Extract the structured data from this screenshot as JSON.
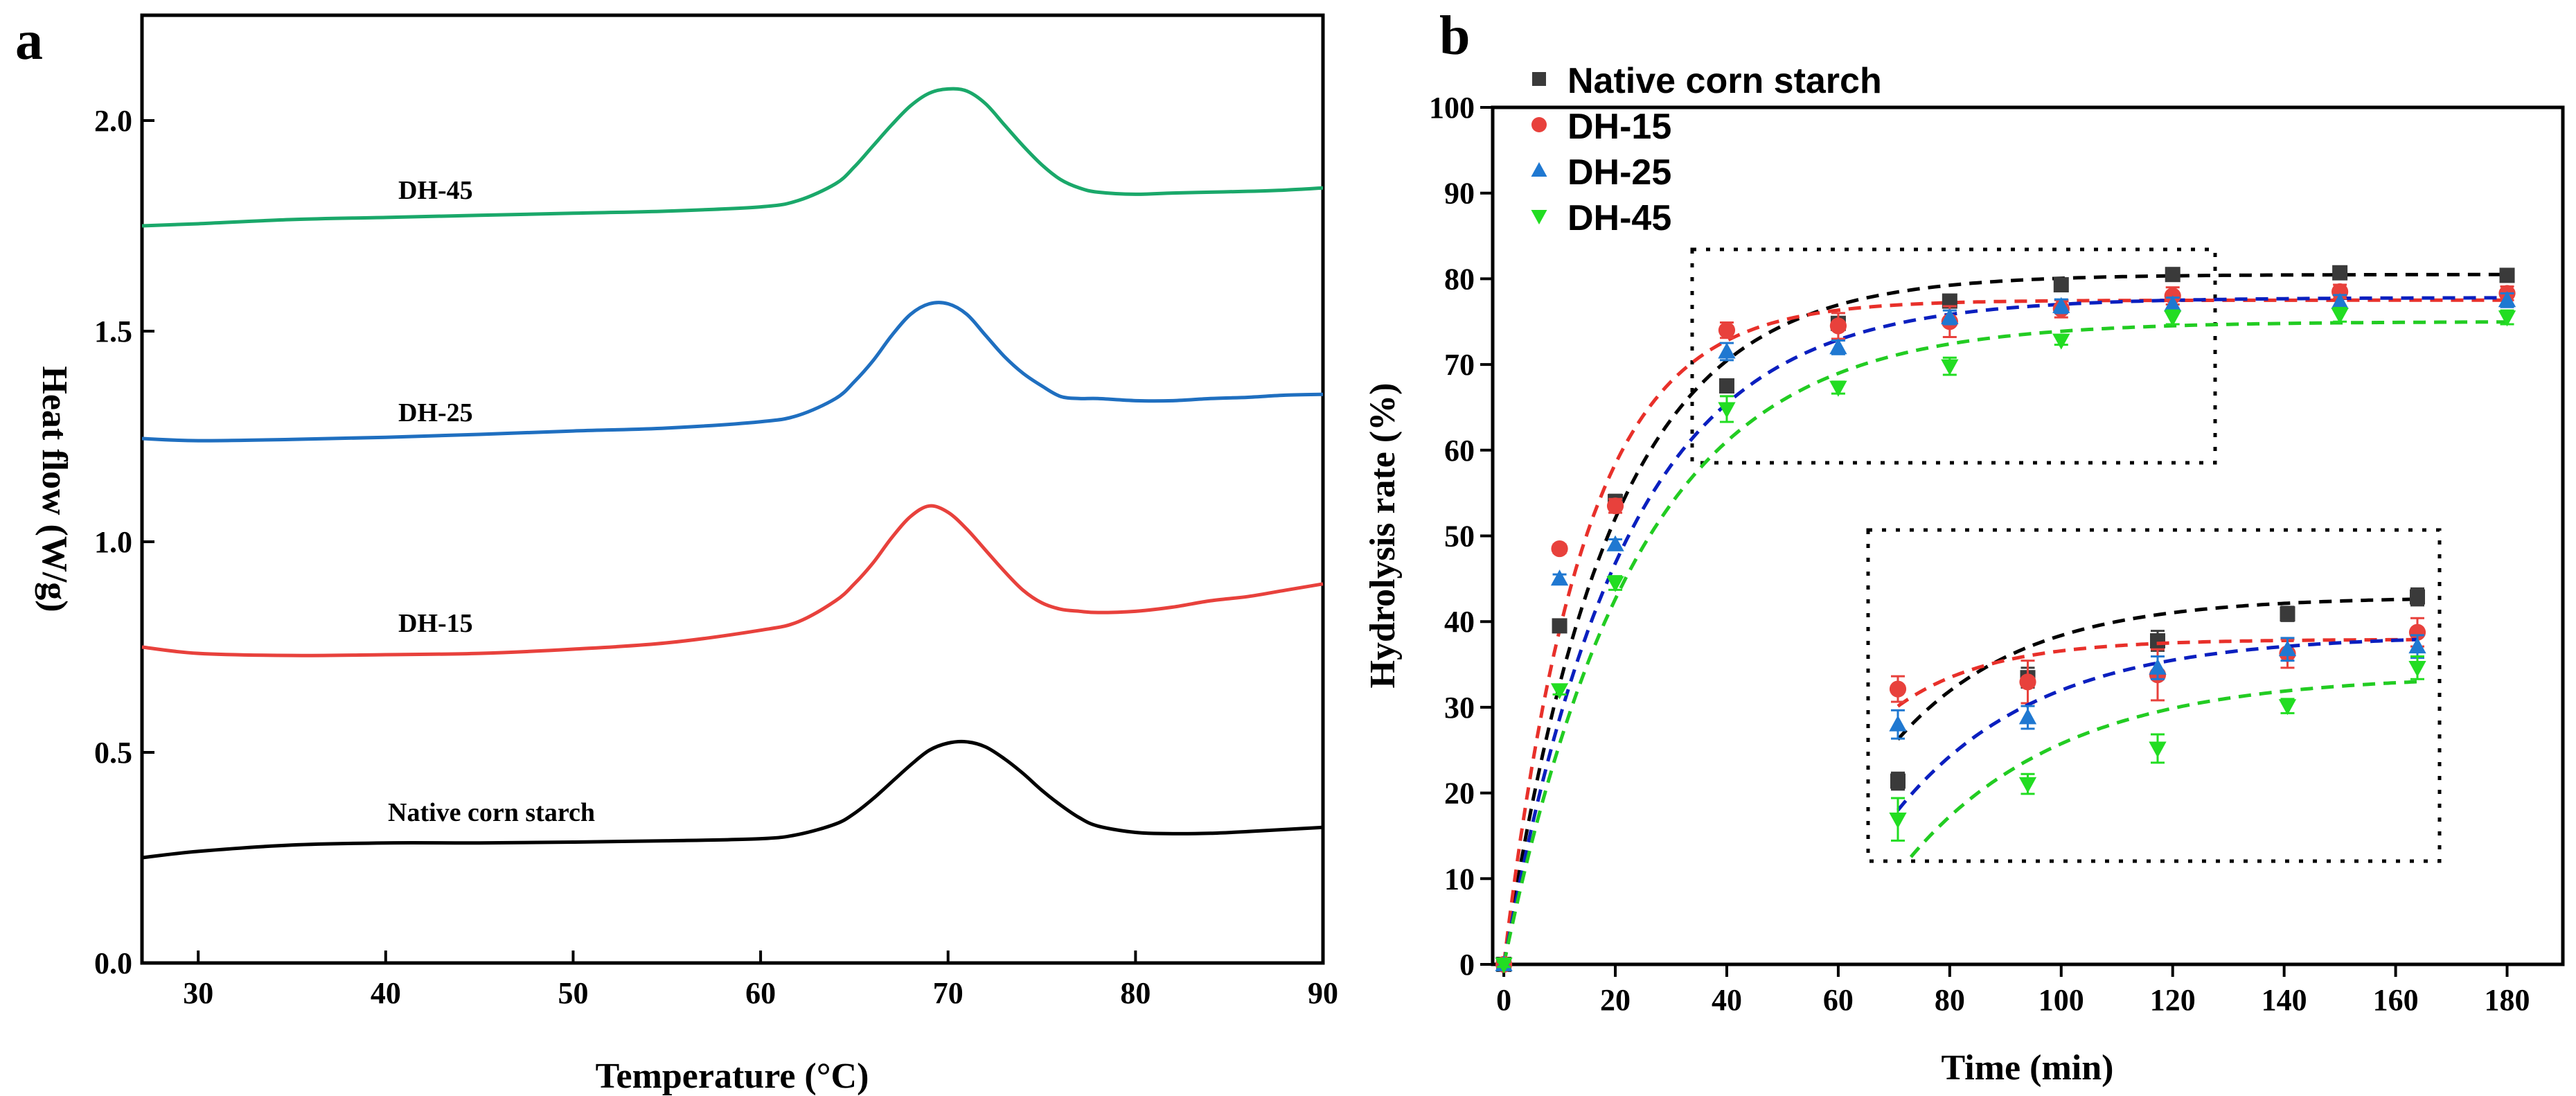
{
  "chart_data": [
    {
      "panel": "a",
      "type": "line",
      "xlabel": "Temperature (°C)",
      "ylabel": "Heat flow (W/g)",
      "xlim": [
        27,
        90
      ],
      "ylim": [
        0.0,
        2.25
      ],
      "xticks": [
        30,
        40,
        50,
        60,
        70,
        80,
        90
      ],
      "yticks": [
        "0.0",
        "0.5",
        "1.0",
        "1.5",
        "2.0"
      ],
      "series": [
        {
          "name": "Native corn starch",
          "color": "#000000",
          "x": [
            27,
            30,
            35,
            40,
            45,
            50,
            55,
            60,
            62,
            64,
            65,
            66,
            67,
            68,
            69,
            70,
            71,
            72,
            73,
            74,
            75,
            76,
            77,
            78,
            80,
            82,
            84,
            86,
            88,
            90
          ],
          "y": [
            0.25,
            0.265,
            0.28,
            0.285,
            0.285,
            0.287,
            0.29,
            0.295,
            0.305,
            0.33,
            0.355,
            0.39,
            0.43,
            0.47,
            0.505,
            0.522,
            0.525,
            0.513,
            0.485,
            0.45,
            0.41,
            0.375,
            0.345,
            0.325,
            0.31,
            0.307,
            0.308,
            0.312,
            0.317,
            0.322
          ]
        },
        {
          "name": "DH-15",
          "color": "#e8413c",
          "x": [
            27,
            30,
            35,
            40,
            45,
            50,
            55,
            60,
            62,
            64,
            65,
            66,
            67,
            68,
            69,
            70,
            71,
            72,
            73,
            74,
            75,
            76,
            77,
            78,
            80,
            82,
            84,
            86,
            88,
            90
          ],
          "y": [
            0.75,
            0.735,
            0.73,
            0.732,
            0.735,
            0.745,
            0.76,
            0.79,
            0.81,
            0.86,
            0.9,
            0.95,
            1.01,
            1.06,
            1.085,
            1.07,
            1.03,
            0.98,
            0.93,
            0.885,
            0.855,
            0.84,
            0.835,
            0.832,
            0.835,
            0.845,
            0.86,
            0.87,
            0.885,
            0.9
          ]
        },
        {
          "name": "DH-25",
          "color": "#1f6fc0",
          "x": [
            27,
            30,
            35,
            40,
            45,
            50,
            55,
            60,
            62,
            64,
            65,
            66,
            67,
            68,
            69,
            70,
            71,
            72,
            73,
            74,
            75,
            76,
            77,
            78,
            80,
            82,
            84,
            86,
            88,
            90
          ],
          "y": [
            1.245,
            1.24,
            1.243,
            1.248,
            1.255,
            1.263,
            1.27,
            1.285,
            1.3,
            1.34,
            1.38,
            1.43,
            1.49,
            1.54,
            1.565,
            1.565,
            1.54,
            1.49,
            1.44,
            1.4,
            1.37,
            1.345,
            1.34,
            1.34,
            1.335,
            1.335,
            1.34,
            1.343,
            1.348,
            1.35
          ]
        },
        {
          "name": "DH-45",
          "color": "#1aa86a",
          "x": [
            27,
            30,
            35,
            40,
            45,
            50,
            55,
            60,
            62,
            64,
            65,
            66,
            67,
            68,
            69,
            70,
            71,
            72,
            73,
            74,
            75,
            76,
            77,
            78,
            80,
            82,
            84,
            86,
            88,
            90
          ],
          "y": [
            1.75,
            1.755,
            1.765,
            1.77,
            1.775,
            1.78,
            1.785,
            1.795,
            1.81,
            1.85,
            1.89,
            1.94,
            1.99,
            2.035,
            2.065,
            2.075,
            2.07,
            2.04,
            1.99,
            1.94,
            1.895,
            1.86,
            1.84,
            1.83,
            1.825,
            1.828,
            1.83,
            1.832,
            1.835,
            1.84
          ]
        }
      ],
      "curve_labels": [
        "DH-45",
        "DH-25",
        "DH-15",
        "Native corn starch"
      ]
    },
    {
      "panel": "b",
      "type": "scatter",
      "xlabel": "Time (min)",
      "ylabel": "Hydrolysis rate (%)",
      "xlim": [
        -2,
        190
      ],
      "ylim": [
        0,
        100
      ],
      "xticks": [
        0,
        20,
        40,
        60,
        80,
        100,
        120,
        140,
        160,
        180
      ],
      "yticks": [
        0,
        10,
        20,
        30,
        40,
        50,
        60,
        70,
        80,
        90,
        100
      ],
      "legend_position": "top-left",
      "series": [
        {
          "name": "Native corn starch",
          "marker": "square",
          "color": "#3a3a3a",
          "fit_color": "#000000",
          "x": [
            0,
            10,
            20,
            40,
            60,
            80,
            100,
            120,
            150,
            180
          ],
          "y": [
            0,
            39.5,
            54,
            67.5,
            74.8,
            77.4,
            79.3,
            80.5,
            80.7,
            80.4
          ],
          "err": [
            0.3,
            0.6,
            0.8,
            0.6,
            0.7,
            0.7,
            0.5,
            0.6,
            0.6,
            0.5
          ],
          "fit_plateau": 80.5,
          "fit_k": 0.052
        },
        {
          "name": "DH-15",
          "marker": "circle",
          "color": "#e8413c",
          "fit_color": "#e8302a",
          "x": [
            0,
            10,
            20,
            40,
            60,
            80,
            100,
            120,
            150,
            180
          ],
          "y": [
            0,
            48.5,
            53.5,
            74,
            74.5,
            75,
            76.5,
            78,
            78.5,
            78.3
          ],
          "err": [
            0.3,
            0.5,
            0.8,
            0.9,
            1.5,
            1.8,
            1.0,
            1.0,
            0.8,
            0.8
          ],
          "fit_plateau": 77.5,
          "fit_k": 0.07
        },
        {
          "name": "DH-25",
          "marker": "triangle-up",
          "color": "#1f78d1",
          "fit_color": "#0a1fbf",
          "x": [
            0,
            10,
            20,
            40,
            60,
            80,
            100,
            120,
            150,
            180
          ],
          "y": [
            0,
            45,
            49,
            71.5,
            72,
            75.5,
            76.8,
            77,
            77.3,
            77.5
          ],
          "err": [
            0.3,
            0.5,
            0.6,
            1.0,
            0.8,
            0.8,
            0.8,
            0.8,
            0.8,
            0.8
          ],
          "fit_plateau": 77.8,
          "fit_k": 0.046
        },
        {
          "name": "DH-45",
          "marker": "triangle-down",
          "color": "#22dd22",
          "fit_color": "#22cc22",
          "x": [
            0,
            10,
            20,
            40,
            60,
            80,
            100,
            120,
            150,
            180
          ],
          "y": [
            0,
            32,
            44.5,
            64.8,
            67.3,
            69.8,
            72.8,
            75.5,
            75.8,
            75.5
          ],
          "err": [
            0.3,
            0.5,
            0.8,
            1.5,
            0.7,
            1.0,
            0.5,
            0.8,
            0.8,
            0.8
          ],
          "fit_plateau": 75,
          "fit_k": 0.042
        }
      ]
    }
  ]
}
